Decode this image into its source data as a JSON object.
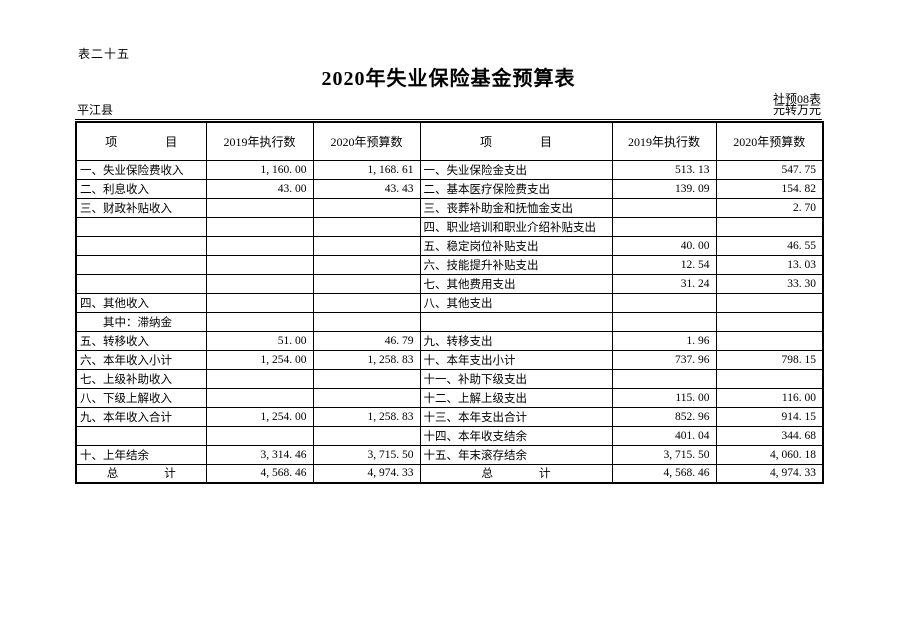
{
  "doc": {
    "table_number": "表二十五",
    "title": "2020年失业保险基金预算表",
    "form_code": "社预08表",
    "region": "平江县",
    "unit_note": "元转万元"
  },
  "table": {
    "headers": {
      "item_left": "项　　　　目",
      "exec_2019_left": "2019年执行数",
      "budget_2020_left": "2020年预算数",
      "item_right": "项　　　　目",
      "exec_2019_right": "2019年执行数",
      "budget_2020_right": "2020年预算数"
    },
    "rows": [
      {
        "type": "",
        "left": "一、失业保险费收入",
        "l2019": "1, 160. 00",
        "l2020": "1, 168. 61",
        "right": "一、失业保险金支出",
        "r2019": "513. 13",
        "r2020": "547. 75"
      },
      {
        "type": "",
        "left": "二、利息收入",
        "l2019": "43. 00",
        "l2020": "43. 43",
        "right": "二、基本医疗保险费支出",
        "r2019": "139. 09",
        "r2020": "154. 82"
      },
      {
        "type": "",
        "left": "三、财政补贴收入",
        "l2019": "",
        "l2020": "",
        "right": "三、丧葬补助金和抚恤金支出",
        "r2019": "",
        "r2020": "2. 70"
      },
      {
        "type": "",
        "left": "",
        "l2019": "",
        "l2020": "",
        "right": "四、职业培训和职业介绍补贴支出",
        "r2019": "",
        "r2020": ""
      },
      {
        "type": "",
        "left": "",
        "l2019": "",
        "l2020": "",
        "right": "五、稳定岗位补贴支出",
        "r2019": "40. 00",
        "r2020": "46. 55"
      },
      {
        "type": "",
        "left": "",
        "l2019": "",
        "l2020": "",
        "right": "六、技能提升补贴支出",
        "r2019": "12. 54",
        "r2020": "13. 03"
      },
      {
        "type": "",
        "left": "",
        "l2019": "",
        "l2020": "",
        "right": "七、其他费用支出",
        "r2019": "31. 24",
        "r2020": "33. 30"
      },
      {
        "type": "",
        "left": "四、其他收入",
        "l2019": "",
        "l2020": "",
        "right": "八、其他支出",
        "r2019": "",
        "r2020": ""
      },
      {
        "type": "sub",
        "left": "其中：滞纳金",
        "l2019": "",
        "l2020": "",
        "right": "",
        "r2019": "",
        "r2020": ""
      },
      {
        "type": "",
        "left": "五、转移收入",
        "l2019": "51. 00",
        "l2020": "46. 79",
        "right": "九、转移支出",
        "r2019": "1. 96",
        "r2020": ""
      },
      {
        "type": "",
        "left": "六、本年收入小计",
        "l2019": "1, 254. 00",
        "l2020": "1, 258. 83",
        "right": "十、本年支出小计",
        "r2019": "737. 96",
        "r2020": "798. 15"
      },
      {
        "type": "",
        "left": "七、上级补助收入",
        "l2019": "",
        "l2020": "",
        "right": "十一、补助下级支出",
        "r2019": "",
        "r2020": ""
      },
      {
        "type": "",
        "left": "八、下级上解收入",
        "l2019": "",
        "l2020": "",
        "right": "十二、上解上级支出",
        "r2019": "115. 00",
        "r2020": "116. 00"
      },
      {
        "type": "",
        "left": "九、本年收入合计",
        "l2019": "1, 254. 00",
        "l2020": "1, 258. 83",
        "right": "十三、本年支出合计",
        "r2019": "852. 96",
        "r2020": "914. 15"
      },
      {
        "type": "",
        "left": "",
        "l2019": "",
        "l2020": "",
        "right": "十四、本年收支结余",
        "r2019": "401. 04",
        "r2020": "344. 68"
      },
      {
        "type": "",
        "left": "十、上年结余",
        "l2019": "3, 314. 46",
        "l2020": "3, 715. 50",
        "right": "十五、年末滚存结余",
        "r2019": "3, 715. 50",
        "r2020": "4, 060. 18"
      },
      {
        "type": "total",
        "left": "总　　　　计",
        "l2019": "4, 568. 46",
        "l2020": "4, 974. 33",
        "right": "总　　　　计",
        "r2019": "4, 568. 46",
        "r2020": "4, 974. 33"
      }
    ]
  }
}
